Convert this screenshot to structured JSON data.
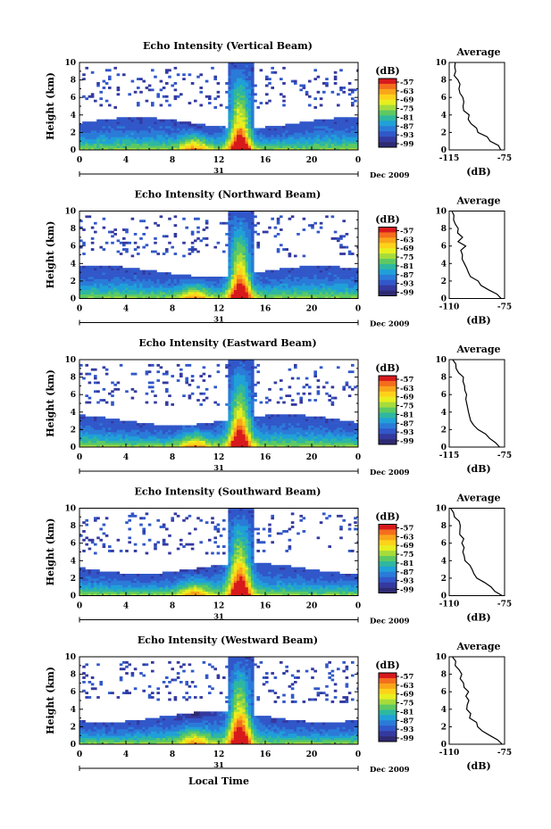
{
  "chart_data": [
    {
      "type": "heatmap",
      "title": "Echo Intensity (Vertical Beam)",
      "ylabel": "Height (km)",
      "x_ticks": [
        "0",
        "4",
        "8",
        "12",
        "16",
        "20",
        "0"
      ],
      "y_ticks": [
        "0",
        "2",
        "4",
        "6",
        "8",
        "10"
      ],
      "xlim": [
        0,
        24
      ],
      "ylim": [
        0,
        10
      ],
      "date_center": "31",
      "date_right": "Dec 2009",
      "colorbar_label": "(dB)",
      "colorbar_ticks": [
        "-57",
        "-63",
        "-69",
        "-75",
        "-81",
        "-87",
        "-93",
        "-99"
      ],
      "avg_title": "Average",
      "avg_xlabel": "(dB)",
      "avg_xticks": [
        "-115",
        "-75"
      ],
      "avg_xlim": [
        -115,
        -75
      ],
      "avg_profile": [
        [
          0,
          -77
        ],
        [
          0.5,
          -79
        ],
        [
          1,
          -84
        ],
        [
          1.5,
          -88
        ],
        [
          2,
          -93
        ],
        [
          2.5,
          -96
        ],
        [
          3,
          -99
        ],
        [
          3.5,
          -101
        ],
        [
          4,
          -102
        ],
        [
          4.5,
          -104
        ],
        [
          5,
          -104
        ],
        [
          5.5,
          -105
        ],
        [
          6,
          -104
        ],
        [
          6.5,
          -106
        ],
        [
          7,
          -107
        ],
        [
          7.5,
          -108
        ],
        [
          8,
          -108
        ],
        [
          8.5,
          -110
        ],
        [
          9,
          -111
        ],
        [
          9.5,
          -112
        ],
        [
          10,
          -112
        ]
      ]
    },
    {
      "type": "heatmap",
      "title": "Echo Intensity (Northward Beam)",
      "ylabel": "Height (km)",
      "x_ticks": [
        "0",
        "4",
        "8",
        "12",
        "16",
        "20",
        "0"
      ],
      "y_ticks": [
        "0",
        "2",
        "4",
        "6",
        "8",
        "10"
      ],
      "xlim": [
        0,
        24
      ],
      "ylim": [
        0,
        10
      ],
      "date_center": "31",
      "date_right": "Dec 2009",
      "colorbar_label": "(dB)",
      "colorbar_ticks": [
        "-57",
        "-63",
        "-69",
        "-75",
        "-81",
        "-87",
        "-93",
        "-99"
      ],
      "avg_title": "Average",
      "avg_xlabel": "(dB)",
      "avg_xticks": [
        "-110",
        "-75"
      ],
      "avg_xlim": [
        -110,
        -75
      ],
      "avg_profile": [
        [
          0,
          -77
        ],
        [
          0.5,
          -80
        ],
        [
          1,
          -86
        ],
        [
          1.5,
          -90
        ],
        [
          2,
          -93
        ],
        [
          2.5,
          -96
        ],
        [
          3,
          -98
        ],
        [
          3.5,
          -99
        ],
        [
          4,
          -100
        ],
        [
          4.5,
          -101
        ],
        [
          5,
          -101
        ],
        [
          5.5,
          -102
        ],
        [
          6,
          -101
        ],
        [
          6.5,
          -103
        ],
        [
          7,
          -103
        ],
        [
          7.5,
          -104
        ],
        [
          8,
          -105
        ],
        [
          8.5,
          -106
        ],
        [
          9,
          -107
        ],
        [
          9.5,
          -107
        ],
        [
          10,
          -108
        ]
      ]
    },
    {
      "type": "heatmap",
      "title": "Echo Intensity (Eastward Beam)",
      "ylabel": "Height (km)",
      "x_ticks": [
        "0",
        "4",
        "8",
        "12",
        "16",
        "20",
        "0"
      ],
      "y_ticks": [
        "0",
        "2",
        "4",
        "6",
        "8",
        "10"
      ],
      "xlim": [
        0,
        24
      ],
      "ylim": [
        0,
        10
      ],
      "date_center": "31",
      "date_right": "Dec 2009",
      "colorbar_label": "(dB)",
      "colorbar_ticks": [
        "-57",
        "-63",
        "-69",
        "-75",
        "-81",
        "-87",
        "-93",
        "-99"
      ],
      "avg_title": "Average",
      "avg_xlabel": "(dB)",
      "avg_xticks": [
        "-115",
        "-75"
      ],
      "avg_xlim": [
        -115,
        -75
      ],
      "avg_profile": [
        [
          0,
          -78
        ],
        [
          0.5,
          -81
        ],
        [
          1,
          -86
        ],
        [
          1.5,
          -90
        ],
        [
          2,
          -94
        ],
        [
          2.5,
          -97
        ],
        [
          3,
          -99
        ],
        [
          3.5,
          -100
        ],
        [
          4,
          -101
        ],
        [
          4.5,
          -102
        ],
        [
          5,
          -102
        ],
        [
          5.5,
          -103
        ],
        [
          6,
          -102
        ],
        [
          6.5,
          -104
        ],
        [
          7,
          -104
        ],
        [
          7.5,
          -105
        ],
        [
          8,
          -106
        ],
        [
          8.5,
          -107
        ],
        [
          9,
          -109
        ],
        [
          9.5,
          -111
        ],
        [
          10,
          -112
        ]
      ]
    },
    {
      "type": "heatmap",
      "title": "Echo Intensity (Southward Beam)",
      "ylabel": "Height (km)",
      "x_ticks": [
        "0",
        "4",
        "8",
        "12",
        "16",
        "20",
        "0"
      ],
      "y_ticks": [
        "0",
        "2",
        "4",
        "6",
        "8",
        "10"
      ],
      "xlim": [
        0,
        24
      ],
      "ylim": [
        0,
        10
      ],
      "date_center": "31",
      "date_right": "Dec 2009",
      "colorbar_label": "(dB)",
      "colorbar_ticks": [
        "-57",
        "-63",
        "-69",
        "-75",
        "-81",
        "-87",
        "-93",
        "-99"
      ],
      "avg_title": "Average",
      "avg_xlabel": "(dB)",
      "avg_xticks": [
        "-110",
        "-75"
      ],
      "avg_xlim": [
        -110,
        -75
      ],
      "avg_profile": [
        [
          0,
          -77
        ],
        [
          0.5,
          -80
        ],
        [
          1,
          -85
        ],
        [
          1.5,
          -89
        ],
        [
          2,
          -92
        ],
        [
          2.5,
          -95
        ],
        [
          3,
          -97
        ],
        [
          3.5,
          -98
        ],
        [
          4,
          -99
        ],
        [
          4.5,
          -100
        ],
        [
          5,
          -100
        ],
        [
          5.5,
          -101
        ],
        [
          6,
          -101
        ],
        [
          6.5,
          -102
        ],
        [
          7,
          -102
        ],
        [
          7.5,
          -103
        ],
        [
          8,
          -104
        ],
        [
          8.5,
          -105
        ],
        [
          9,
          -106
        ],
        [
          9.5,
          -107
        ],
        [
          10,
          -108
        ]
      ]
    },
    {
      "type": "heatmap",
      "title": "Echo Intensity (Westward Beam)",
      "ylabel": "Height (km)",
      "xlabel": "Local Time",
      "x_ticks": [
        "0",
        "4",
        "8",
        "12",
        "16",
        "20",
        "0"
      ],
      "y_ticks": [
        "0",
        "2",
        "4",
        "6",
        "8",
        "10"
      ],
      "xlim": [
        0,
        24
      ],
      "ylim": [
        0,
        10
      ],
      "date_center": "31",
      "date_right": "Dec 2009",
      "colorbar_label": "(dB)",
      "colorbar_ticks": [
        "-57",
        "-63",
        "-69",
        "-75",
        "-81",
        "-87",
        "-93",
        "-99"
      ],
      "avg_title": "Average",
      "avg_xlabel": "(dB)",
      "avg_xticks": [
        "-110",
        "-75"
      ],
      "avg_xlim": [
        -110,
        -75
      ],
      "avg_profile": [
        [
          0,
          -76
        ],
        [
          0.5,
          -79
        ],
        [
          1,
          -84
        ],
        [
          1.5,
          -88
        ],
        [
          2,
          -92
        ],
        [
          2.5,
          -94
        ],
        [
          3,
          -96
        ],
        [
          3.5,
          -97
        ],
        [
          4,
          -98
        ],
        [
          4.5,
          -99
        ],
        [
          5,
          -99
        ],
        [
          5.5,
          -100
        ],
        [
          6,
          -99
        ],
        [
          6.5,
          -101
        ],
        [
          7,
          -101
        ],
        [
          7.5,
          -102
        ],
        [
          8,
          -103
        ],
        [
          8.5,
          -104
        ],
        [
          9,
          -105
        ],
        [
          9.5,
          -106
        ],
        [
          10,
          -107
        ]
      ]
    }
  ],
  "colorbar_colors": [
    "#d7191c",
    "#f46d1e",
    "#f9a51a",
    "#ffd21a",
    "#e8ef1f",
    "#a5dc3c",
    "#5ec962",
    "#2fb7a0",
    "#20a0d8",
    "#2b7bd8",
    "#3157c9",
    "#34399f",
    "#2e2a72"
  ]
}
